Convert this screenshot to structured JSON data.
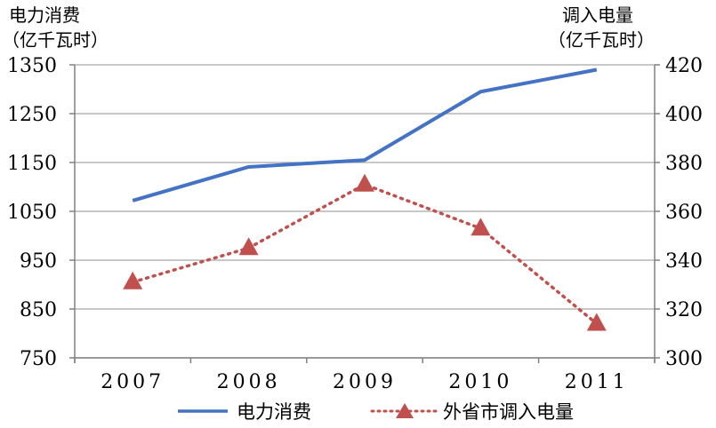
{
  "chart_data": {
    "type": "line",
    "categories": [
      "2007",
      "2008",
      "2009",
      "2010",
      "2011"
    ],
    "axes": {
      "left": {
        "title_line1": "电力消费",
        "title_line2": "（亿千瓦时）",
        "ylim": [
          750,
          1350
        ],
        "ticks": [
          "1350",
          "1250",
          "1150",
          "1050",
          "950",
          "850",
          "750"
        ],
        "tick_values": [
          1350,
          1250,
          1150,
          1050,
          950,
          850,
          750
        ]
      },
      "right": {
        "title_line1": "调入电量",
        "title_line2": "（亿千瓦时）",
        "ylim": [
          300,
          420
        ],
        "ticks": [
          "420",
          "400",
          "380",
          "360",
          "340",
          "320",
          "300"
        ],
        "tick_values": [
          420,
          400,
          380,
          360,
          340,
          320,
          300
        ]
      }
    },
    "series": [
      {
        "name": "电力消费",
        "axis": "left",
        "values": [
          1072,
          1141,
          1155,
          1295,
          1340
        ],
        "color": "#4472c4",
        "style": "solid"
      },
      {
        "name": "外省市调入电量",
        "axis": "right",
        "values": [
          331,
          345,
          371,
          353,
          314
        ],
        "color": "#c0504d",
        "style": "dotted",
        "marker": "triangle"
      }
    ],
    "grid": true,
    "legend_position": "bottom"
  }
}
